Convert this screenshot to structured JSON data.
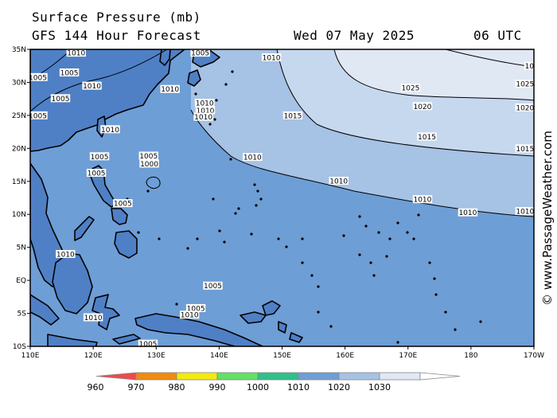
{
  "header": {
    "title": "Surface Pressure (mb)",
    "subtitle": "GFS 144 Hour Forecast",
    "date": "Wed 07 May 2025",
    "time": "06 UTC"
  },
  "credit": "© www.PassageWeather.com",
  "map": {
    "lat_labels": [
      "35N",
      "30N",
      "25N",
      "20N",
      "15N",
      "10N",
      "5N",
      "EQ",
      "5S",
      "10S"
    ],
    "lon_labels": [
      "110E",
      "120E",
      "130E",
      "140E",
      "150E",
      "160E",
      "170E",
      "180",
      "170W"
    ],
    "isobar_labels": [
      {
        "text": "1010",
        "lon": 117.3,
        "lat": 34.5
      },
      {
        "text": "1005",
        "lon": 116.2,
        "lat": 31.5
      },
      {
        "text": "1005",
        "lon": 114.8,
        "lat": 27.6
      },
      {
        "text": "1010",
        "lon": 119.8,
        "lat": 29.5
      },
      {
        "text": "1005",
        "lon": 137.0,
        "lat": 34.5
      },
      {
        "text": "1010",
        "lon": 148.3,
        "lat": 33.8
      },
      {
        "text": "1010",
        "lon": 132.2,
        "lat": 29.0
      },
      {
        "text": "1010",
        "lon": 137.7,
        "lat": 26.9
      },
      {
        "text": "1010",
        "lon": 137.8,
        "lat": 25.8
      },
      {
        "text": "1010",
        "lon": 137.5,
        "lat": 24.8
      },
      {
        "text": "1015",
        "lon": 151.7,
        "lat": 25.0
      },
      {
        "text": "1010",
        "lon": 122.7,
        "lat": 22.9
      },
      {
        "text": "1010",
        "lon": 145.3,
        "lat": 18.7
      },
      {
        "text": "1010",
        "lon": 159.0,
        "lat": 15.1
      },
      {
        "text": "1010",
        "lon": 172.3,
        "lat": 12.3
      },
      {
        "text": "1010",
        "lon": 179.5,
        "lat": 10.3
      },
      {
        "text": "1015",
        "lon": 173.0,
        "lat": 21.8
      },
      {
        "text": "1020",
        "lon": 172.3,
        "lat": 26.4
      },
      {
        "text": "1025",
        "lon": 170.4,
        "lat": 29.2
      },
      {
        "text": "1005",
        "lon": 128.8,
        "lat": 18.9
      },
      {
        "text": "1000",
        "lon": 128.9,
        "lat": 17.7
      },
      {
        "text": "1005",
        "lon": 121.0,
        "lat": 18.8
      },
      {
        "text": "1005",
        "lon": 120.5,
        "lat": 16.3
      },
      {
        "text": "1005",
        "lon": 124.7,
        "lat": 11.7
      },
      {
        "text": "1010",
        "lon": 115.6,
        "lat": 4.0
      },
      {
        "text": "1005",
        "lon": 139.0,
        "lat": -0.8
      },
      {
        "text": "1005",
        "lon": 136.3,
        "lat": -4.2
      },
      {
        "text": "1010",
        "lon": 135.3,
        "lat": -5.2
      },
      {
        "text": "1010",
        "lon": 120.0,
        "lat": -5.6
      },
      {
        "text": "1005",
        "lon": 128.7,
        "lat": -9.6
      },
      {
        "text": "1005",
        "lon": 111.2,
        "lat": 25.0
      },
      {
        "text": "1005",
        "lon": 111.2,
        "lat": 30.8
      }
    ],
    "edge_labels": [
      {
        "text": "1015",
        "lat": 20.0
      },
      {
        "text": "1010",
        "lat": 10.5
      },
      {
        "text": "1020",
        "lat": 26.2
      },
      {
        "text": "1025",
        "lat": 29.8
      },
      {
        "text": "10",
        "lat": 32.5
      }
    ]
  },
  "colorbar": {
    "ticks": [
      "960",
      "970",
      "980",
      "990",
      "1000",
      "1010",
      "1020",
      "1030"
    ],
    "colors": [
      "#ef4a4a",
      "#f08a10",
      "#f2ea10",
      "#64e064",
      "#2fbf8a",
      "#6e9ed6",
      "#a6c2e4",
      "#e0e8f4"
    ]
  },
  "colors": {
    "land": "#4f80c6",
    "p1010": "#6e9ed6",
    "p1015": "#a6c2e4",
    "p1020": "#c6d8ee",
    "p1025": "#e0e8f4"
  }
}
